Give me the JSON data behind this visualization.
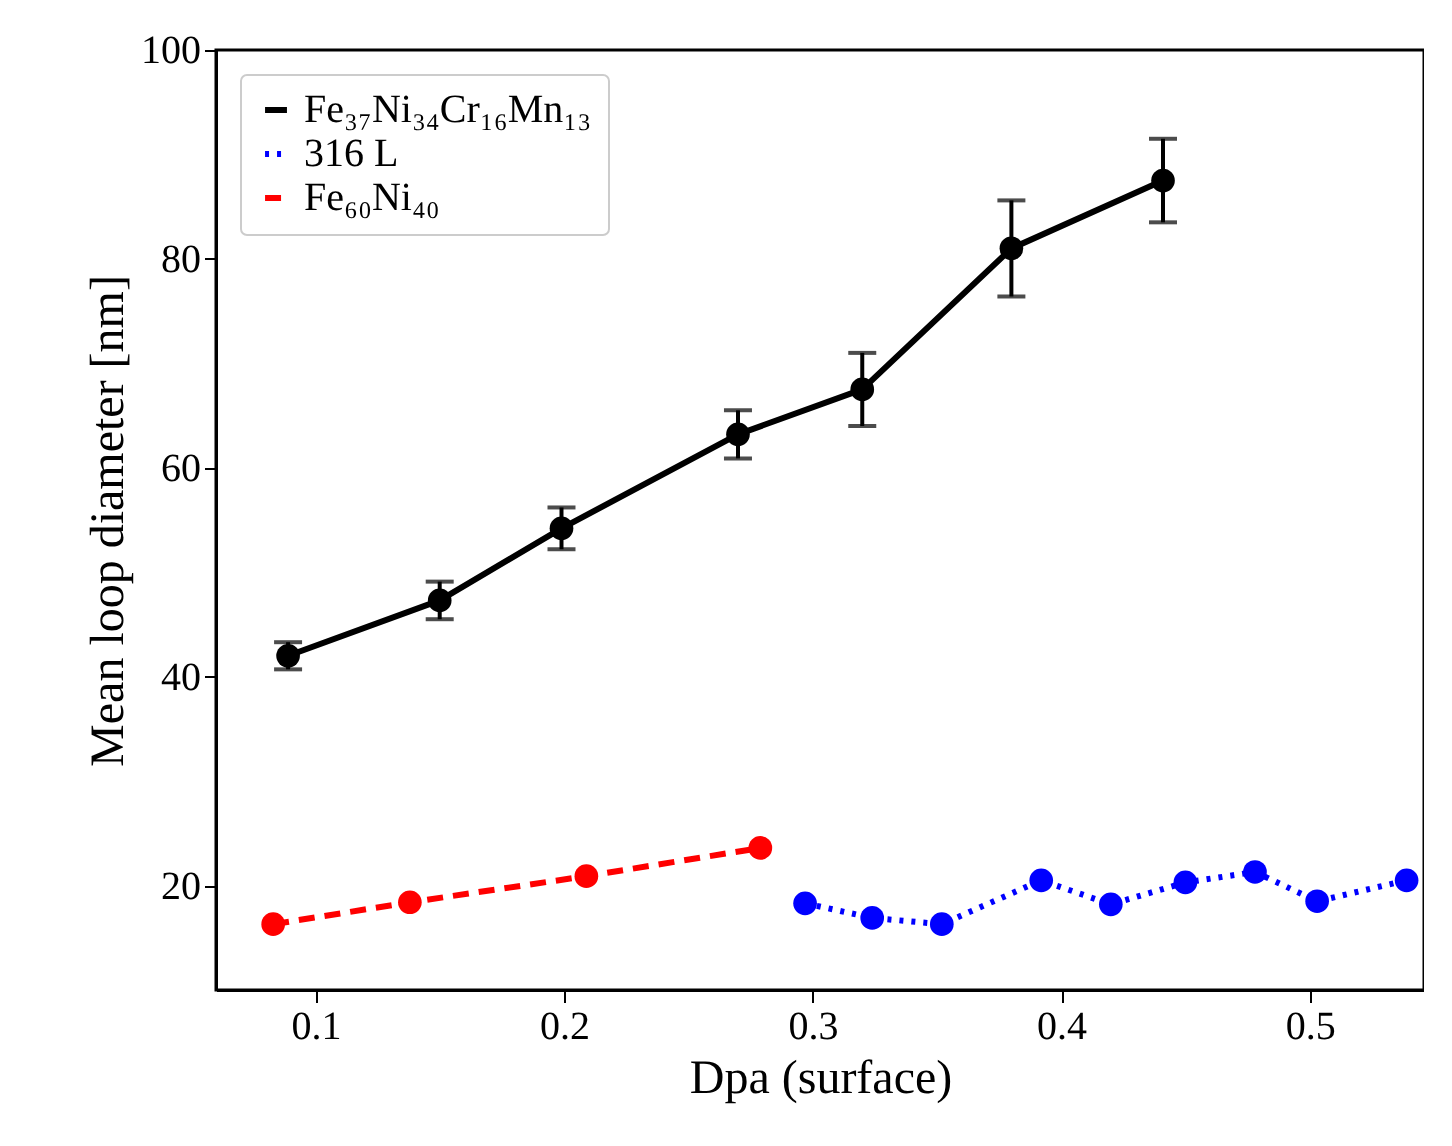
{
  "chart_data": {
    "type": "line",
    "xlabel": "Dpa (surface)",
    "ylabel": "Mean loop diameter [nm]",
    "xlim": [
      0.06,
      0.546
    ],
    "ylim": [
      10,
      100
    ],
    "xticks": [
      0.1,
      0.2,
      0.3,
      0.4,
      0.5
    ],
    "yticks": [
      20,
      40,
      60,
      80,
      100
    ],
    "grid": false,
    "legend": "top left",
    "marker": "circle",
    "series": [
      {
        "name": "Fe₃₇Ni₃₄Cr₁₆Mn₁₃",
        "color": "#000000",
        "line_style": "solid",
        "x": [
          0.089,
          0.15,
          0.199,
          0.27,
          0.32,
          0.38,
          0.441
        ],
        "values": [
          42,
          47.3,
          54.2,
          63.2,
          67.5,
          81,
          87.5
        ],
        "errors": [
          1.3,
          1.8,
          2,
          2.3,
          3.5,
          4.6,
          4
        ]
      },
      {
        "name": "316 L",
        "color": "#0000ff",
        "line_style": "dotted",
        "x": [
          0.297,
          0.324,
          0.352,
          0.392,
          0.42,
          0.45,
          0.478,
          0.503,
          0.539
        ],
        "values": [
          18.3,
          16.9,
          16.3,
          20.5,
          18.2,
          20.3,
          21.3,
          18.5,
          20.5
        ]
      },
      {
        "name": "Fe₆₀Ni₄₀",
        "color": "#ff0000",
        "line_style": "dashed",
        "x": [
          0.083,
          0.138,
          0.209,
          0.279
        ],
        "values": [
          16.3,
          18.4,
          20.9,
          23.6
        ]
      }
    ]
  }
}
